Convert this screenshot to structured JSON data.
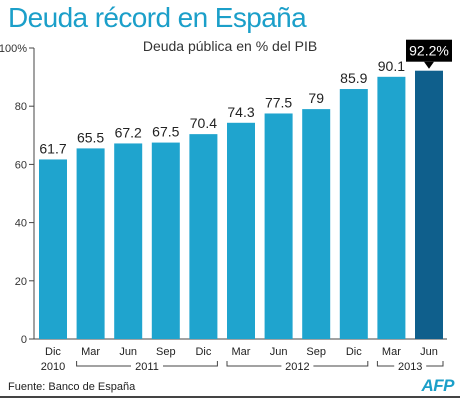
{
  "chart_data": {
    "type": "bar",
    "title": "Deuda récord en España",
    "subtitle": "Deuda pública en % del PIB",
    "categories": [
      "Dic",
      "Mar",
      "Jun",
      "Sep",
      "Dic",
      "Mar",
      "Jun",
      "Sep",
      "Dic",
      "Mar",
      "Jun"
    ],
    "values": [
      61.7,
      65.5,
      67.2,
      67.5,
      70.4,
      74.3,
      77.5,
      79,
      85.9,
      90.1,
      92.2
    ],
    "value_labels": [
      "61.7",
      "65.5",
      "67.2",
      "67.5",
      "70.4",
      "74.3",
      "77.5",
      "79",
      "85.9",
      "90.1",
      "92.2%"
    ],
    "year_groups": [
      {
        "label": "2010",
        "start": 0,
        "end": 0
      },
      {
        "label": "2011",
        "start": 1,
        "end": 4
      },
      {
        "label": "2012",
        "start": 5,
        "end": 8
      },
      {
        "label": "2013",
        "start": 9,
        "end": 10
      }
    ],
    "ylim": [
      0,
      100
    ],
    "yticks": [
      0,
      20,
      40,
      60,
      80,
      100
    ],
    "ytick_labels": [
      "0",
      "20",
      "40",
      "60",
      "80",
      "100%"
    ],
    "highlight_index": 10,
    "grid": false,
    "colors": {
      "bar": "#1fa4ce",
      "highlight_bar": "#0f5f8c",
      "title": "#1b9fc9",
      "callout_bg": "#000000",
      "callout_text": "#ffffff"
    }
  },
  "source": "Fuente: Banco de España",
  "logo_text": "AFP"
}
